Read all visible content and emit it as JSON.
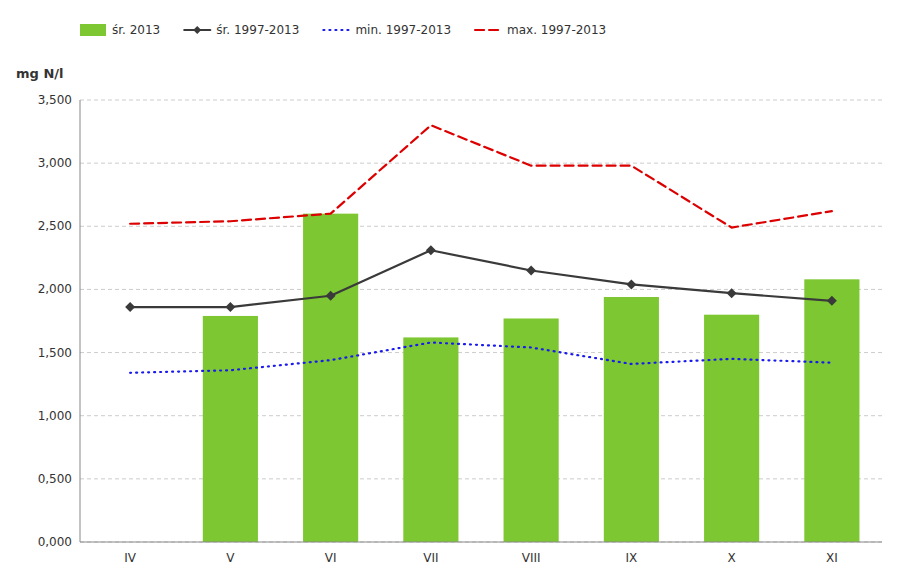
{
  "chart_data": {
    "type": "bar",
    "ylabel": "mg N/l",
    "categories": [
      "IV",
      "V",
      "VI",
      "VII",
      "VIII",
      "IX",
      "X",
      "XI"
    ],
    "series": [
      {
        "name": "śr. 2013",
        "type": "bar",
        "color": "#7dc832",
        "values": [
          0.0,
          1.79,
          2.6,
          1.62,
          1.77,
          1.94,
          1.8,
          2.08
        ]
      },
      {
        "name": "śr. 1997-2013",
        "type": "line",
        "color": "#3a3a3a",
        "marker": "diamond",
        "line_style": "solid",
        "values": [
          1.86,
          1.86,
          1.95,
          2.31,
          2.15,
          2.04,
          1.97,
          1.91
        ]
      },
      {
        "name": "min. 1997-2013",
        "type": "line",
        "color": "#1a1aee",
        "line_style": "dotted",
        "values": [
          1.34,
          1.36,
          1.44,
          1.58,
          1.54,
          1.41,
          1.45,
          1.42
        ]
      },
      {
        "name": "max. 1997-2013",
        "type": "line",
        "color": "#dd0000",
        "line_style": "dashed",
        "values": [
          2.52,
          2.54,
          2.6,
          3.3,
          2.98,
          2.98,
          2.49,
          2.62
        ]
      }
    ],
    "ylim": [
      0.0,
      3.5
    ],
    "yticks": [
      {
        "value": 0.0,
        "label": "0,000"
      },
      {
        "value": 0.5,
        "label": "0,500"
      },
      {
        "value": 1.0,
        "label": "1,000"
      },
      {
        "value": 1.5,
        "label": "1,500"
      },
      {
        "value": 2.0,
        "label": "2,000"
      },
      {
        "value": 2.5,
        "label": "2,500"
      },
      {
        "value": 3.0,
        "label": "3,000"
      },
      {
        "value": 3.5,
        "label": "3,500"
      }
    ],
    "grid": true,
    "legend": "top"
  }
}
